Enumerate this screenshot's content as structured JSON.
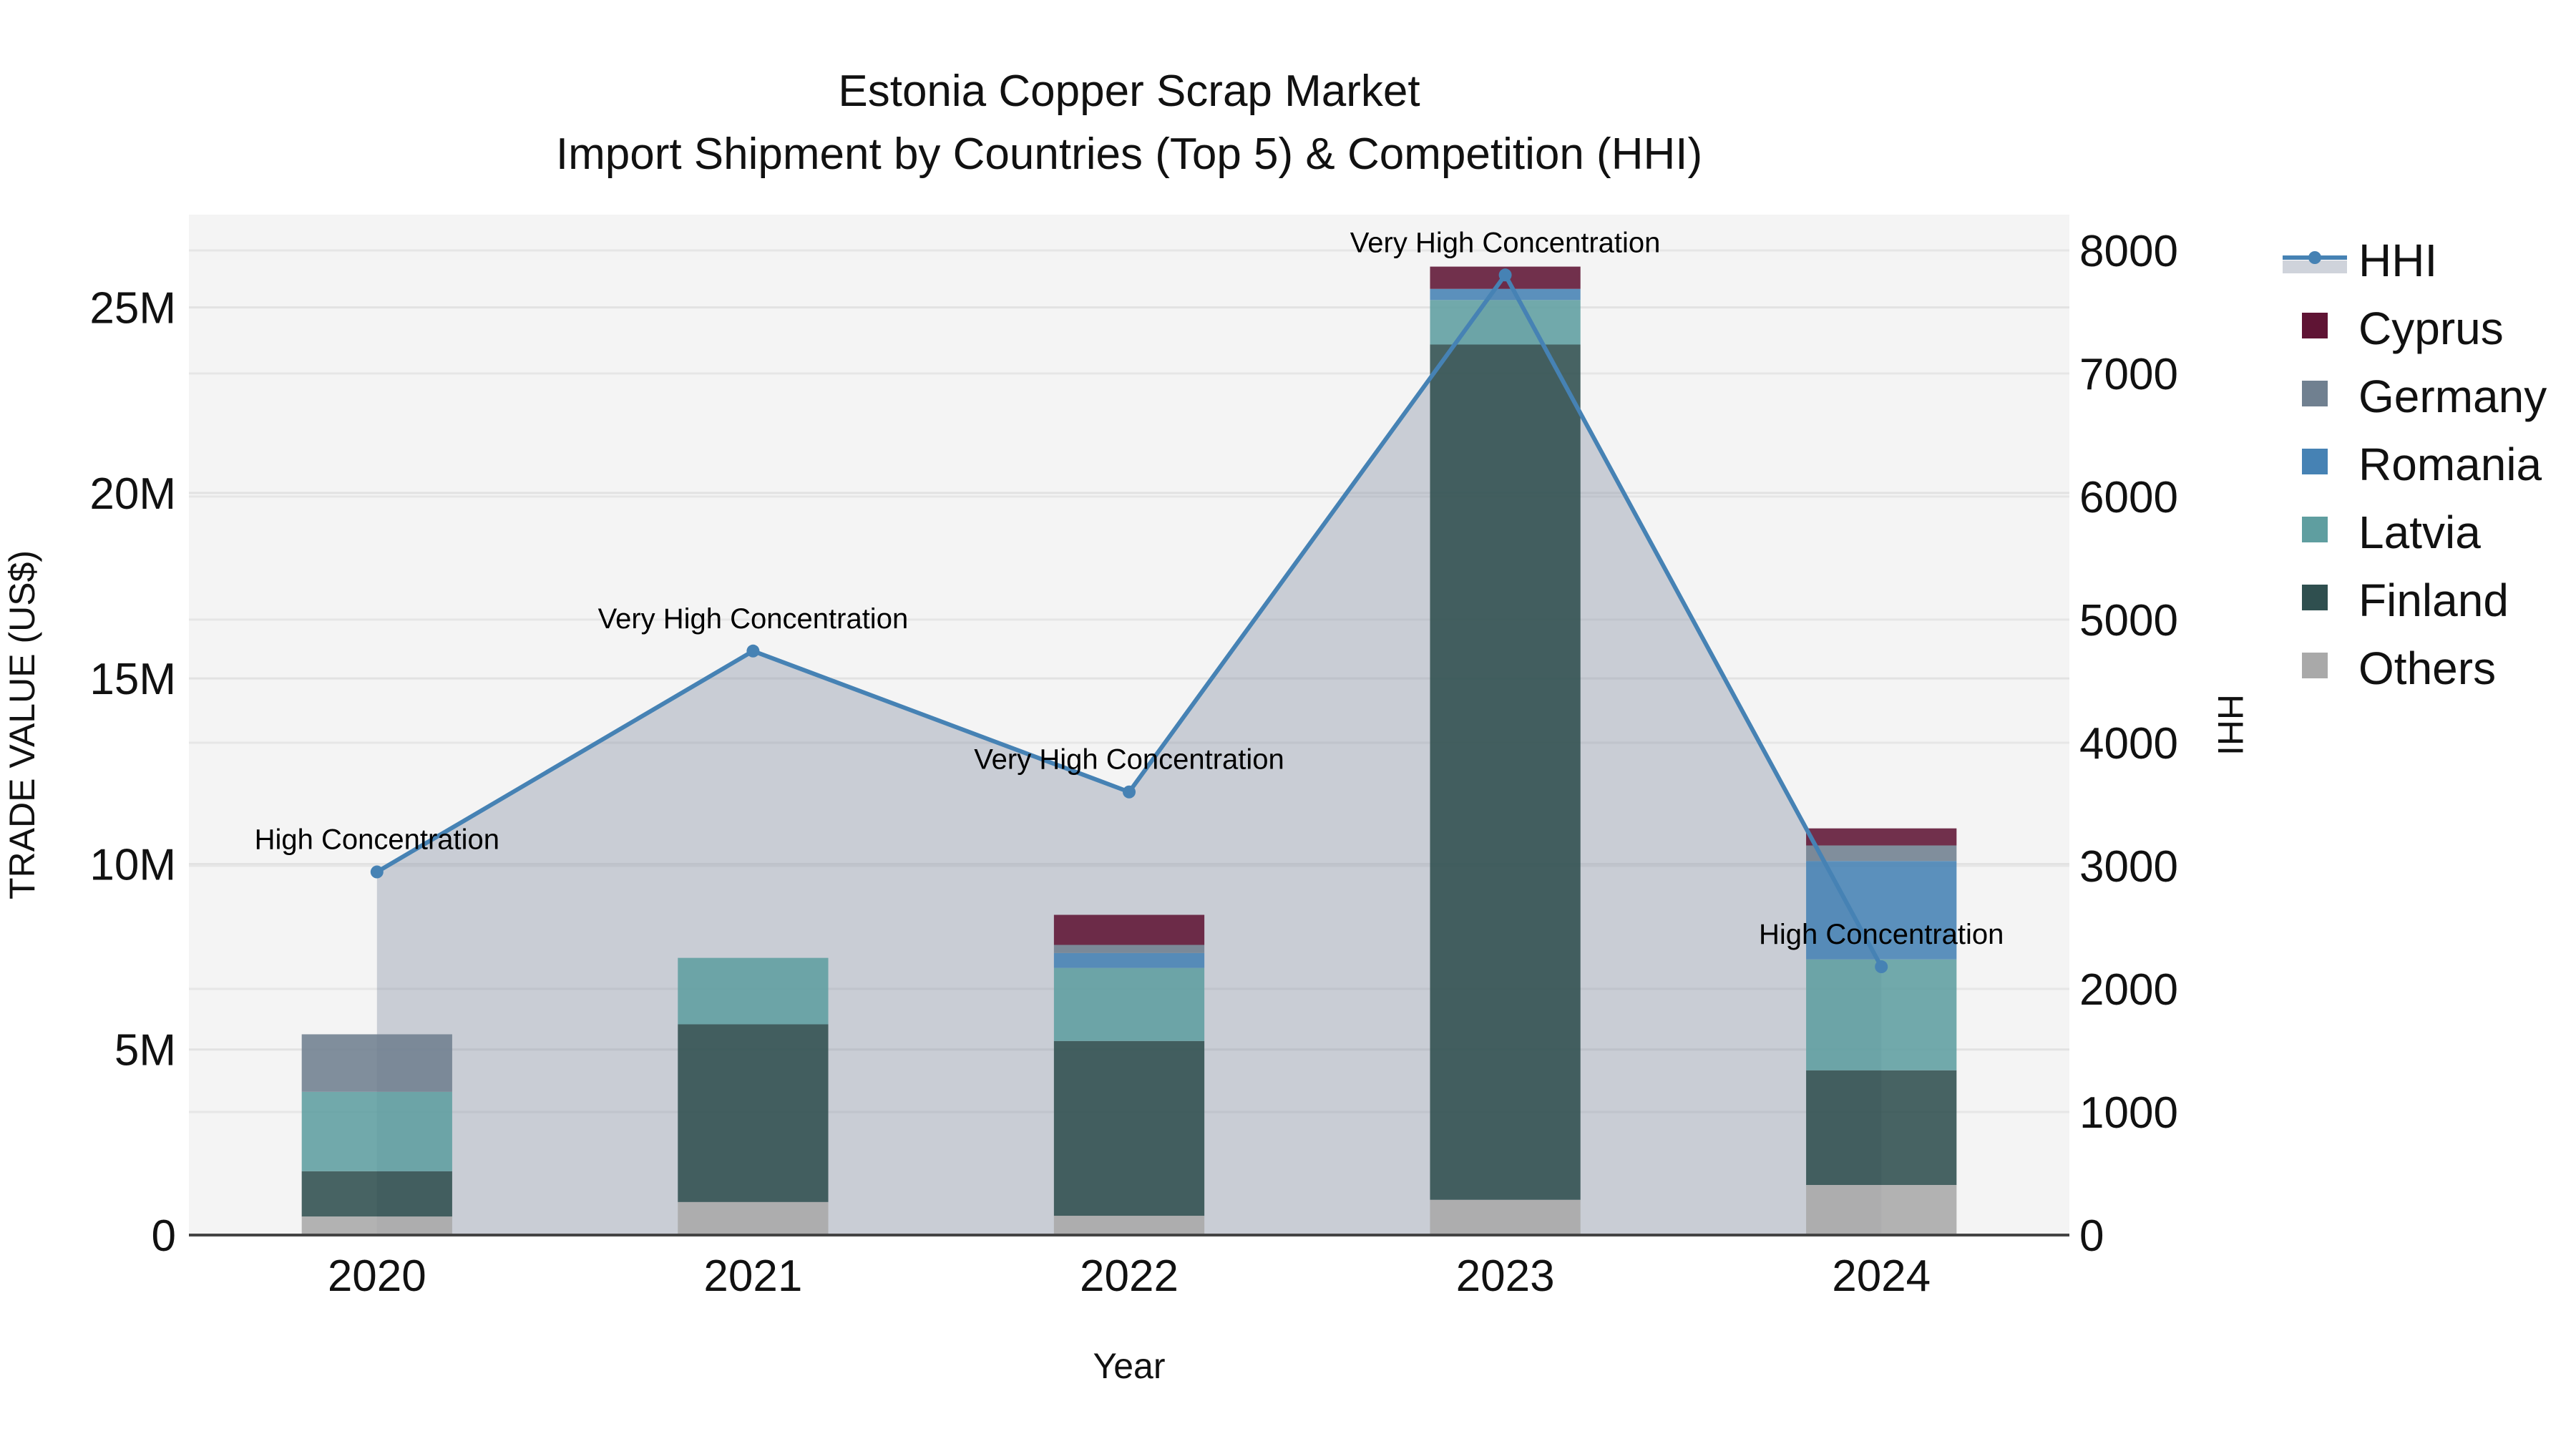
{
  "title": {
    "line1": "Estonia Copper Scrap Market",
    "line2": "Import Shipment by Countries (Top 5) & Competition (HHI)"
  },
  "axes": {
    "x_title": "Year",
    "y_left_title": "TRADE VALUE (US$)",
    "y_right_title": "HHI",
    "y_left_ticks": [
      "0",
      "5M",
      "10M",
      "15M",
      "20M",
      "25M"
    ],
    "y_right_ticks": [
      "0",
      "1000",
      "2000",
      "3000",
      "4000",
      "5000",
      "6000",
      "7000",
      "8000"
    ]
  },
  "legend": {
    "items": [
      {
        "label": "HHI",
        "type": "line",
        "color": "#4682b4"
      },
      {
        "label": "Cyprus",
        "type": "bar",
        "color": "#5f1434"
      },
      {
        "label": "Germany",
        "type": "bar",
        "color": "#708090"
      },
      {
        "label": "Romania",
        "type": "bar",
        "color": "#4682b4"
      },
      {
        "label": "Latvia",
        "type": "bar",
        "color": "#5f9ea0"
      },
      {
        "label": "Finland",
        "type": "bar",
        "color": "#2f4f4f"
      },
      {
        "label": "Others",
        "type": "bar",
        "color": "#a9a9a9"
      }
    ]
  },
  "annotations": [
    {
      "year": "2020",
      "text": "High Concentration"
    },
    {
      "year": "2021",
      "text": "Very High Concentration"
    },
    {
      "year": "2022",
      "text": "Very High Concentration"
    },
    {
      "year": "2023",
      "text": "Very High Concentration"
    },
    {
      "year": "2024",
      "text": "High Concentration"
    }
  ],
  "chart_data": {
    "type": "bar",
    "title": "Estonia Copper Scrap Market — Import Shipment by Countries (Top 5) & Competition (HHI)",
    "xlabel": "Year",
    "ylabel": "TRADE VALUE (US$)",
    "y2label": "HHI",
    "categories": [
      "2020",
      "2021",
      "2022",
      "2023",
      "2024"
    ],
    "stacked": true,
    "ylim": [
      0,
      27500000
    ],
    "y2lim": [
      0,
      8290
    ],
    "grid": true,
    "legend_position": "right",
    "series": [
      {
        "name": "Others",
        "color": "#a9a9a9",
        "values": [
          500000,
          890000,
          520000,
          950000,
          1350000
        ]
      },
      {
        "name": "Finland",
        "color": "#2f4f4f",
        "values": [
          1220000,
          4790000,
          4710000,
          23050000,
          3090000
        ]
      },
      {
        "name": "Latvia",
        "color": "#5f9ea0",
        "values": [
          2140000,
          1790000,
          1970000,
          1200000,
          2990000
        ]
      },
      {
        "name": "Romania",
        "color": "#4682b4",
        "values": [
          0,
          0,
          400000,
          300000,
          2650000
        ]
      },
      {
        "name": "Germany",
        "color": "#708090",
        "values": [
          1550000,
          0,
          220000,
          0,
          420000
        ]
      },
      {
        "name": "Cyprus",
        "color": "#5f1434",
        "values": [
          0,
          0,
          810000,
          600000,
          460000
        ]
      }
    ],
    "line_series": {
      "name": "HHI",
      "axis": "right",
      "color": "#4682b4",
      "fill": "tozeroy",
      "values": [
        2950,
        4745,
        3600,
        7800,
        2180
      ],
      "labels": [
        "High Concentration",
        "Very High Concentration",
        "Very High Concentration",
        "Very High Concentration",
        "High Concentration"
      ]
    }
  }
}
